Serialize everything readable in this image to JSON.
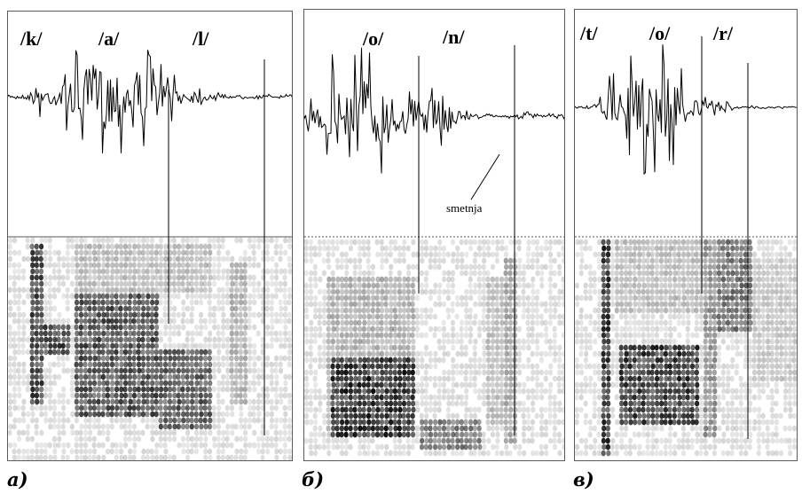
{
  "panels": [
    {
      "id": "a",
      "label": "a)",
      "segments": [
        "/k/",
        "/a/",
        "/l/"
      ]
    },
    {
      "id": "b",
      "label": "б)",
      "segments": [
        "/o/",
        "/n/"
      ],
      "annotation": "smetnja"
    },
    {
      "id": "c",
      "label": "в)",
      "segments": [
        "/t/",
        "/o/",
        "/r/"
      ]
    }
  ],
  "colors": {
    "waveform": "#000000",
    "spectrogram_dark": "#000000",
    "spectrogram_light": "#d8d8d8",
    "border": "#5a5a5a"
  }
}
